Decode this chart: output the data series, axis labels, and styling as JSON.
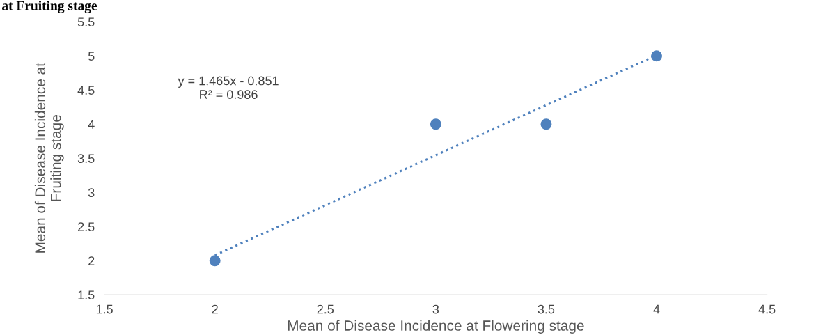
{
  "chart_data": {
    "type": "scatter",
    "title": "at Fruiting stage",
    "xlabel": "Mean of Disease Incidence at Flowering stage",
    "ylabel": "Mean of Disease Incidence at\nFruiting stage",
    "series": [
      {
        "color": "#4f81bd",
        "x": [
          2,
          3,
          3.5,
          4
        ],
        "values": [
          2,
          4,
          4,
          5
        ],
        "marker": "circle"
      },
      {
        "type": "line",
        "color": "#4f81bd",
        "x": [
          2,
          4
        ],
        "values": [
          2.08,
          5.01
        ],
        "line_style": "dotted",
        "marker": "none"
      }
    ],
    "annotations": [
      "y = 1.465x - 0.851",
      "R² = 0.986"
    ],
    "xlim": [
      1.5,
      4.5
    ],
    "xticks": [
      1.5,
      2,
      2.5,
      3,
      3.5,
      4,
      4.5
    ],
    "ylim": [
      1.5,
      5.5
    ],
    "yticks": [
      1.5,
      2,
      2.5,
      3,
      3.5,
      4,
      4.5,
      5,
      5.5
    ],
    "grid": false,
    "legend": false
  }
}
